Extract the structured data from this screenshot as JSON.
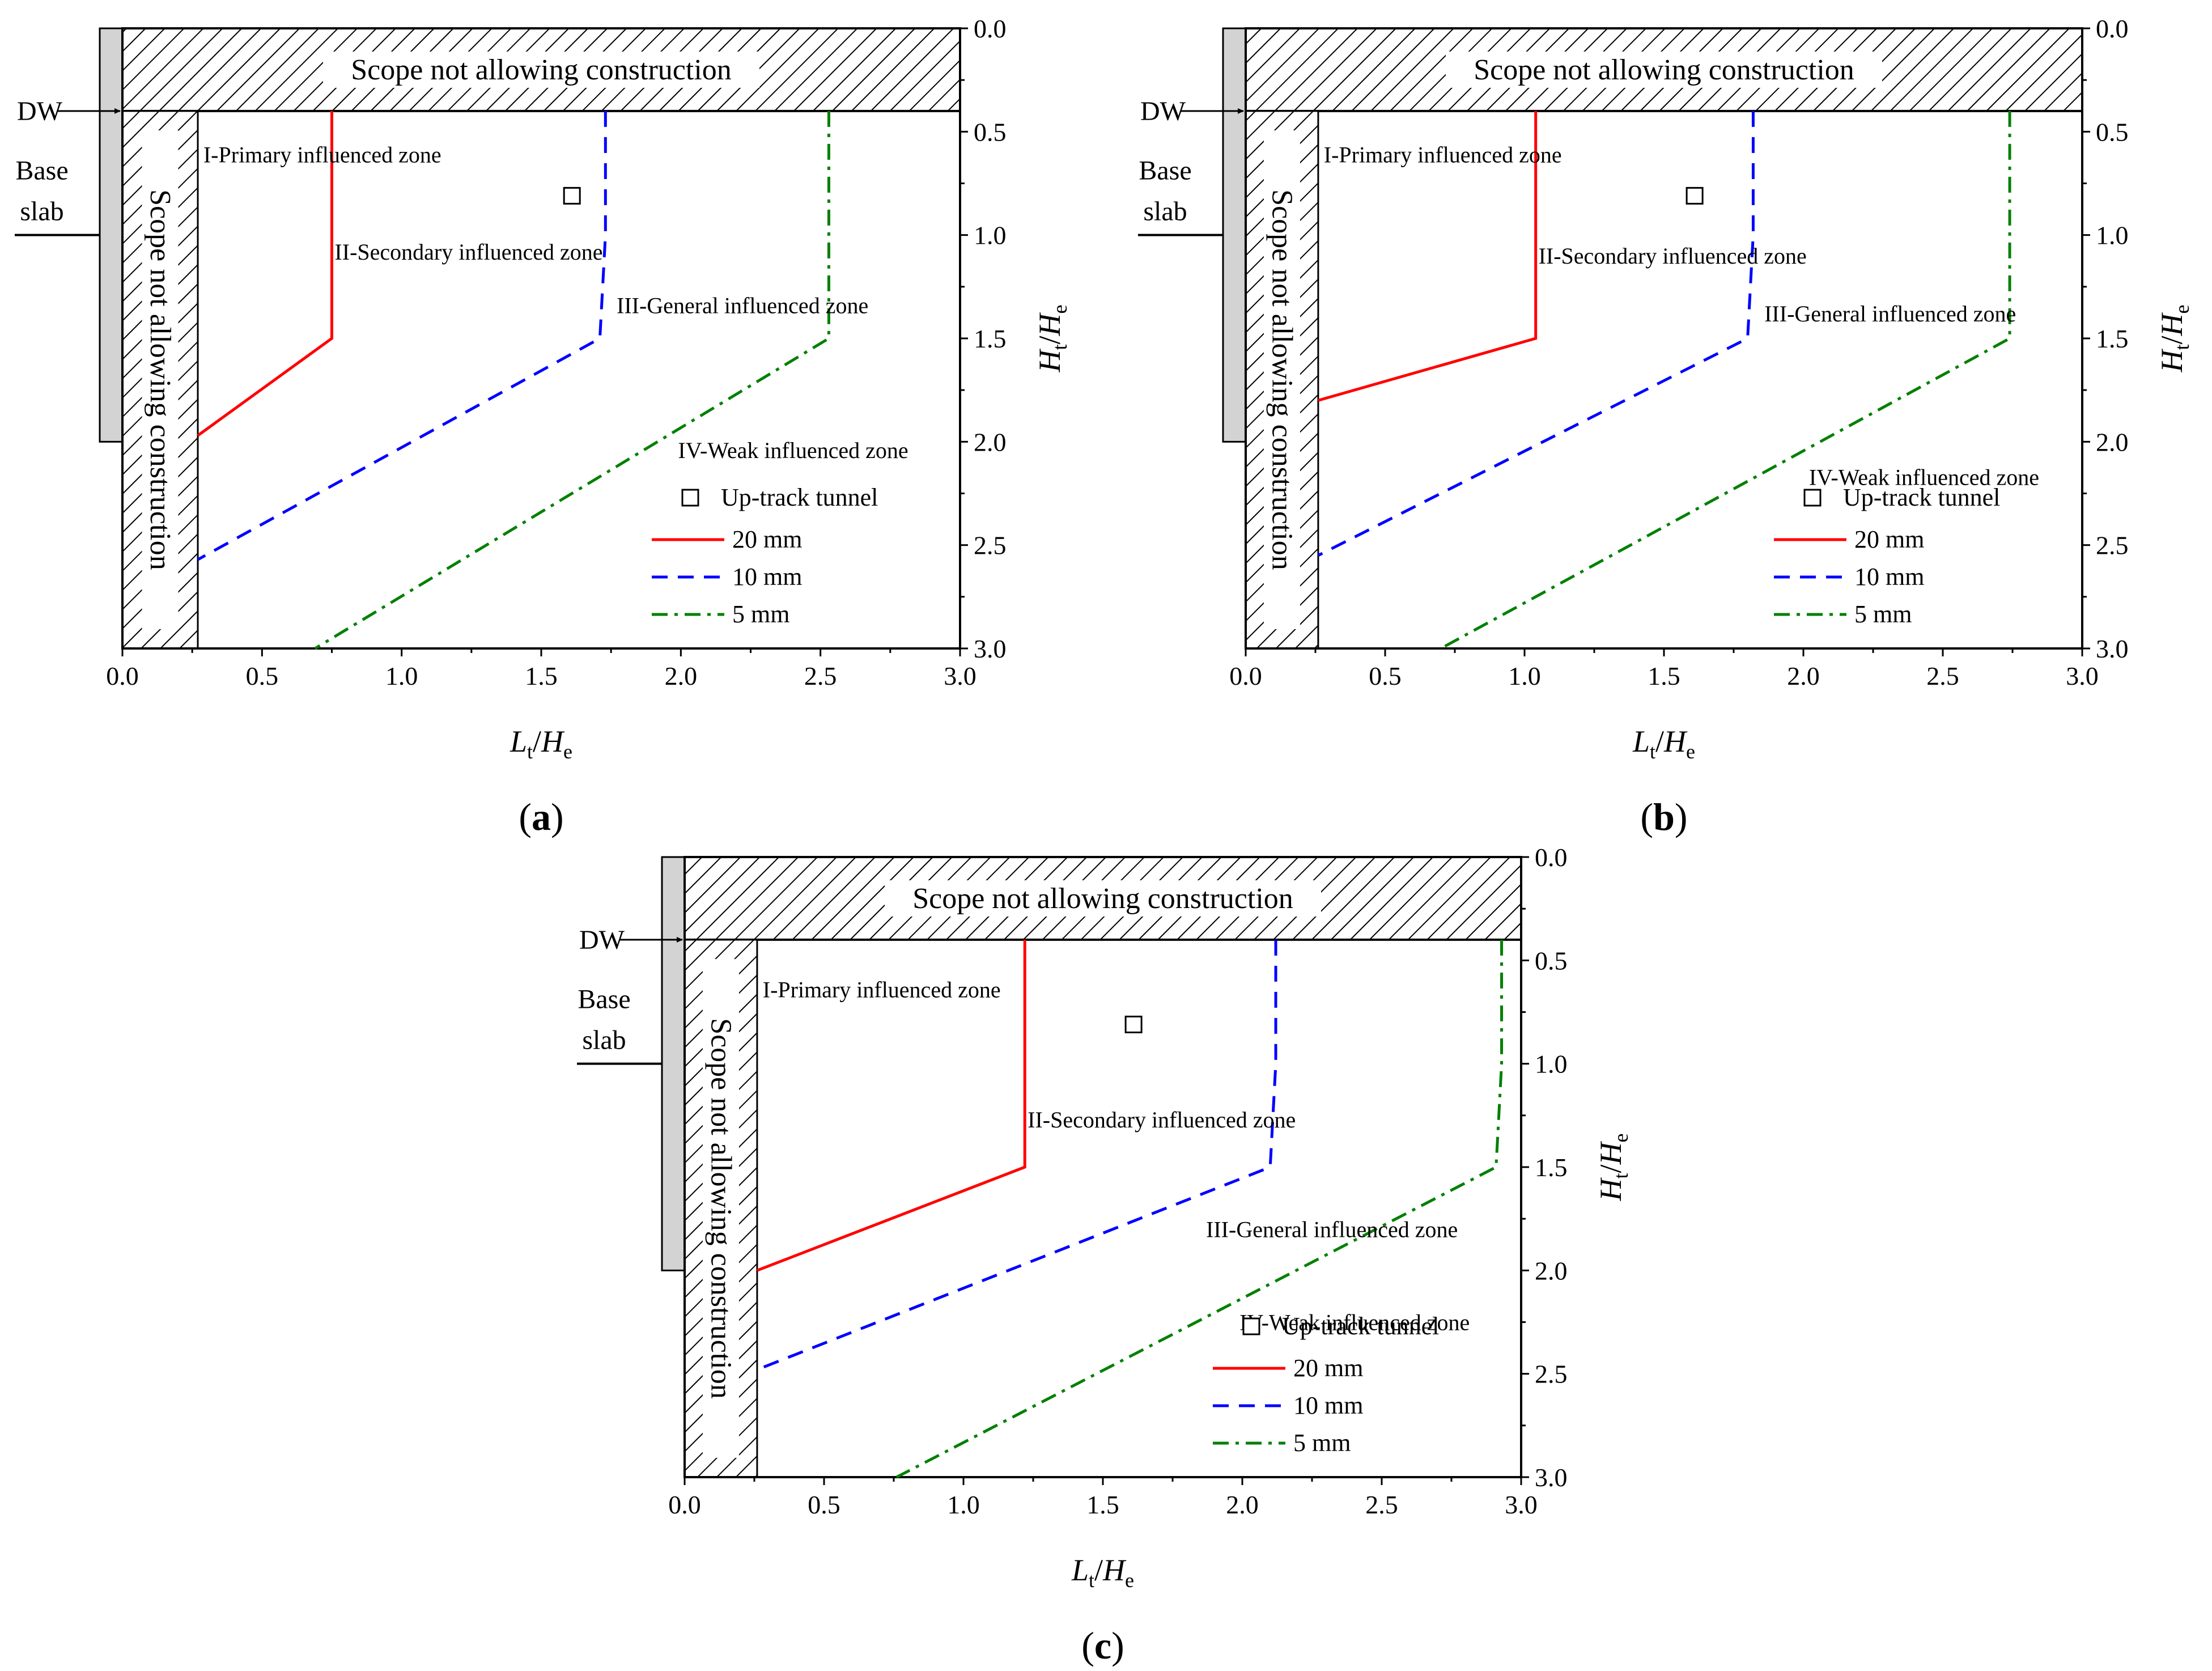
{
  "chart_data": [
    {
      "type": "line",
      "panel": "a",
      "xlabel": {
        "main": "L",
        "sub": "t",
        "sep": "/",
        "main2": "H",
        "sub2": "e"
      },
      "ylabel": {
        "main": "H",
        "sub": "t",
        "sep": "/",
        "main2": "H",
        "sub2": "e"
      },
      "xlim": [
        0,
        3.0
      ],
      "ylim": [
        0,
        3.0
      ],
      "y_inverted": true,
      "y_axis_side": "right",
      "xticks": [
        "0.0",
        "0.5",
        "1.0",
        "1.5",
        "2.0",
        "2.5",
        "3.0"
      ],
      "yticks": [
        "0.0",
        "0.5",
        "1.0",
        "1.5",
        "2.0",
        "2.5",
        "3.0"
      ],
      "restricted_top": {
        "label": "Scope not allowing construction",
        "depth": 0.4
      },
      "restricted_side": {
        "label": "Scope not allowing construction",
        "width": 0.27
      },
      "wall_bottom": 2.0,
      "base_slab_level": 1.0,
      "dw_level": 0.4,
      "dw_label": "DW",
      "base_slab_label": [
        "Base",
        "slab"
      ],
      "tunnel": {
        "label": "Up-track tunnel",
        "x": 1.61,
        "y": 0.81
      },
      "series": [
        {
          "name": "20 mm",
          "color": "#ff0000",
          "dash": "solid",
          "x": [
            0.75,
            0.75,
            0.27
          ],
          "y": [
            0.4,
            1.5,
            1.97
          ]
        },
        {
          "name": "10 mm",
          "color": "#0000ff",
          "dash": "dash",
          "x": [
            1.73,
            1.73,
            1.71,
            0.27
          ],
          "y": [
            0.4,
            1.0,
            1.5,
            2.57
          ]
        },
        {
          "name": "5 mm",
          "color": "#008000",
          "dash": "dashdot",
          "x": [
            2.53,
            2.53,
            0.69
          ],
          "y": [
            0.4,
            1.5,
            3.0
          ]
        }
      ],
      "annotations": [
        {
          "text": "I-Primary influenced zone",
          "x": 0.29,
          "y": 0.61
        },
        {
          "text": "II-Secondary influenced zone",
          "x": 0.76,
          "y": 1.08
        },
        {
          "text": "III-General influenced zone",
          "x": 1.77,
          "y": 1.34
        },
        {
          "text": "IV-Weak influenced zone",
          "x": 1.99,
          "y": 2.04
        }
      ]
    },
    {
      "type": "line",
      "panel": "b",
      "xlabel": {
        "main": "L",
        "sub": "t",
        "sep": "/",
        "main2": "H",
        "sub2": "e"
      },
      "ylabel": {
        "main": "H",
        "sub": "t",
        "sep": "/",
        "main2": "H",
        "sub2": "e"
      },
      "xlim": [
        0,
        3.0
      ],
      "ylim": [
        0,
        3.0
      ],
      "y_inverted": true,
      "y_axis_side": "right",
      "xticks": [
        "0.0",
        "0.5",
        "1.0",
        "1.5",
        "2.0",
        "2.5",
        "3.0"
      ],
      "yticks": [
        "0.0",
        "0.5",
        "1.0",
        "1.5",
        "2.0",
        "2.5",
        "3.0"
      ],
      "restricted_top": {
        "label": "Scope not allowing construction",
        "depth": 0.4
      },
      "restricted_side": {
        "label": "Scope not allowing construction",
        "width": 0.26
      },
      "wall_bottom": 2.0,
      "base_slab_level": 1.0,
      "dw_level": 0.4,
      "dw_label": "DW",
      "base_slab_label": [
        "Base",
        "slab"
      ],
      "tunnel": {
        "label": "Up-track tunnel",
        "x": 1.61,
        "y": 0.81
      },
      "series": [
        {
          "name": "20 mm",
          "color": "#ff0000",
          "dash": "solid",
          "x": [
            1.04,
            1.04,
            0.26
          ],
          "y": [
            0.4,
            1.5,
            1.8
          ]
        },
        {
          "name": "10 mm",
          "color": "#0000ff",
          "dash": "dash",
          "x": [
            1.82,
            1.82,
            1.8,
            0.26
          ],
          "y": [
            0.4,
            1.0,
            1.5,
            2.55
          ]
        },
        {
          "name": "5 mm",
          "color": "#008000",
          "dash": "dashdot",
          "x": [
            2.74,
            2.74,
            0.7
          ],
          "y": [
            0.4,
            1.5,
            3.0
          ]
        }
      ],
      "annotations": [
        {
          "text": "I-Primary influenced zone",
          "x": 0.28,
          "y": 0.61
        },
        {
          "text": "II-Secondary influenced zone",
          "x": 1.05,
          "y": 1.1
        },
        {
          "text": "III-General influenced zone",
          "x": 1.86,
          "y": 1.38
        },
        {
          "text": "IV-Weak influenced zone",
          "x": 2.02,
          "y": 2.17
        }
      ]
    },
    {
      "type": "line",
      "panel": "c",
      "xlabel": {
        "main": "L",
        "sub": "t",
        "sep": "/",
        "main2": "H",
        "sub2": "e"
      },
      "ylabel": {
        "main": "H",
        "sub": "t",
        "sep": "/",
        "main2": "H",
        "sub2": "e"
      },
      "xlim": [
        0,
        3.0
      ],
      "ylim": [
        0,
        3.0
      ],
      "y_inverted": true,
      "y_axis_side": "right",
      "xticks": [
        "0.0",
        "0.5",
        "1.0",
        "1.5",
        "2.0",
        "2.5",
        "3.0"
      ],
      "yticks": [
        "0.0",
        "0.5",
        "1.0",
        "1.5",
        "2.0",
        "2.5",
        "3.0"
      ],
      "restricted_top": {
        "label": "Scope not allowing construction",
        "depth": 0.4
      },
      "restricted_side": {
        "label": "Scope not allowing construction",
        "width": 0.26
      },
      "wall_bottom": 2.0,
      "base_slab_level": 1.0,
      "dw_level": 0.4,
      "dw_label": "DW",
      "base_slab_label": [
        "Base",
        "slab"
      ],
      "tunnel": {
        "label": "Up-track tunnel",
        "x": 1.61,
        "y": 0.81
      },
      "series": [
        {
          "name": "20 mm",
          "color": "#ff0000",
          "dash": "solid",
          "x": [
            1.22,
            1.22,
            0.26
          ],
          "y": [
            0.4,
            1.5,
            2.0
          ]
        },
        {
          "name": "10 mm",
          "color": "#0000ff",
          "dash": "dash",
          "x": [
            2.12,
            2.12,
            2.1,
            0.26
          ],
          "y": [
            0.4,
            1.0,
            1.5,
            2.48
          ]
        },
        {
          "name": "5 mm",
          "color": "#008000",
          "dash": "dashdot",
          "x": [
            2.93,
            2.93,
            2.91,
            0.76
          ],
          "y": [
            0.4,
            1.0,
            1.5,
            3.0
          ]
        }
      ],
      "annotations": [
        {
          "text": "I-Primary influenced zone",
          "x": 0.28,
          "y": 0.64
        },
        {
          "text": "II-Secondary influenced zone",
          "x": 1.23,
          "y": 1.27
        },
        {
          "text": "III-General influenced zone",
          "x": 1.87,
          "y": 1.8
        },
        {
          "text": "IV-Weak influenced zone",
          "x": 1.99,
          "y": 2.25
        }
      ]
    }
  ]
}
